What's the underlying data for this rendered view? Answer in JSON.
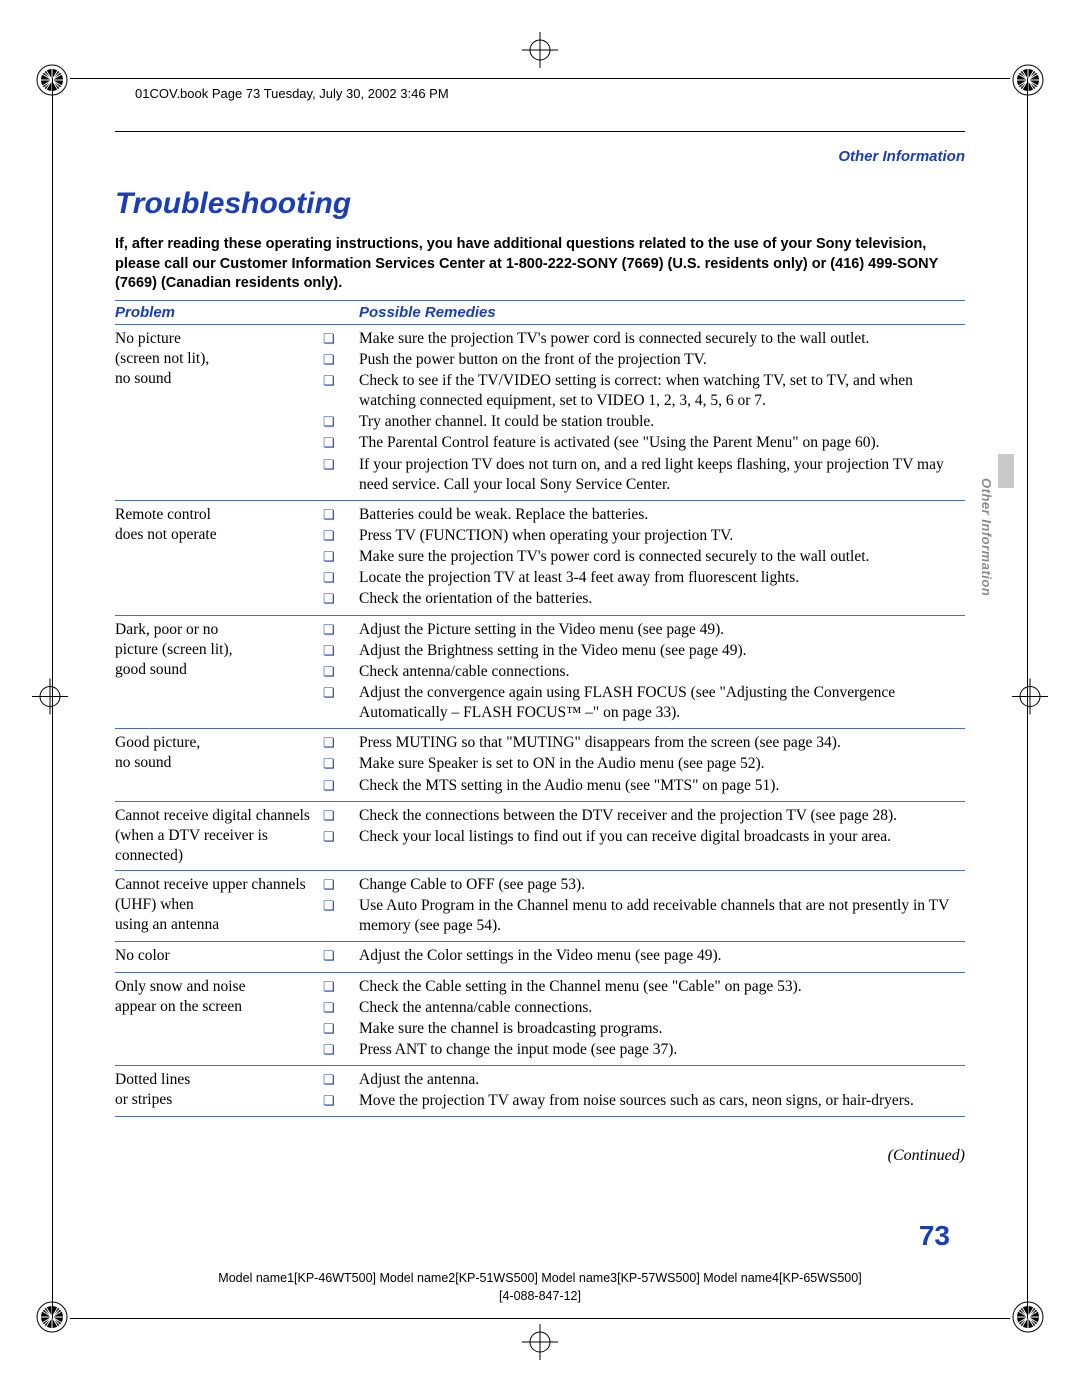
{
  "book_header": "01COV.book  Page 73  Tuesday, July 30, 2002  3:46 PM",
  "section_tag": "Other Information",
  "title": "Troubleshooting",
  "intro": "If, after reading these operating instructions, you have additional questions related to the use of your Sony television, please call our Customer Information Services Center at 1-800-222-SONY (7669) (U.S. residents only) or (416) 499-SONY (7669) (Canadian residents only).",
  "columns": {
    "problem": "Problem",
    "remedies": "Possible Remedies"
  },
  "rows": [
    {
      "problem": "No picture\n(screen not lit),\nno sound",
      "remedies": [
        "Make sure the projection TV's power cord is connected securely to the wall outlet.",
        "Push the power button on the front of the projection TV.",
        "Check to see if the TV/VIDEO setting is correct: when watching TV, set to TV, and when watching connected equipment, set to VIDEO 1, 2, 3, 4, 5, 6 or 7.",
        "Try another channel. It could be station trouble.",
        "The Parental Control feature is activated (see \"Using the Parent Menu\" on page 60).",
        "If your projection TV does not turn on, and a red light keeps flashing, your projection TV may need service. Call your local Sony Service Center."
      ]
    },
    {
      "problem": "Remote control\ndoes not operate",
      "remedies": [
        "Batteries could be weak. Replace the batteries.",
        "Press TV (FUNCTION) when operating your projection TV.",
        "Make sure the projection TV's power cord is connected securely to the wall outlet.",
        "Locate the projection TV at least 3-4 feet away from fluorescent lights.",
        "Check the orientation of the batteries."
      ]
    },
    {
      "problem": "Dark, poor or no\npicture (screen lit),\ngood sound",
      "remedies": [
        "Adjust the Picture setting in the Video menu (see page 49).",
        "Adjust the Brightness setting in the Video menu (see page 49).",
        "Check antenna/cable connections.",
        "Adjust the convergence again using FLASH FOCUS (see \"Adjusting the Convergence Automatically – FLASH FOCUS™ –\" on page 33)."
      ]
    },
    {
      "problem": "Good picture,\nno sound",
      "remedies": [
        "Press MUTING so that \"MUTING\" disappears from the screen (see page 34).",
        "Make sure Speaker is set to ON in the Audio menu (see page 52).",
        "Check the MTS setting in the Audio menu (see \"MTS\" on page 51)."
      ]
    },
    {
      "problem": "Cannot receive digital channels\n(when a DTV receiver is\nconnected)",
      "remedies": [
        "Check the connections between the DTV receiver and the projection TV (see page 28).",
        "Check your local listings to find out if you can receive digital broadcasts in your area."
      ]
    },
    {
      "problem": "Cannot receive upper channels\n(UHF) when\nusing an antenna",
      "remedies": [
        "Change Cable to OFF (see page 53).",
        "Use Auto Program in the Channel menu to add receivable channels that are not presently in TV memory (see page 54)."
      ]
    },
    {
      "problem": "No color",
      "remedies": [
        "Adjust the Color settings in the Video menu (see page 49)."
      ]
    },
    {
      "problem": "Only snow and noise\nappear on the screen",
      "remedies": [
        "Check the Cable setting in the Channel menu (see \"Cable\" on page 53).",
        "Check the antenna/cable connections.",
        "Make sure the channel is broadcasting programs.",
        "Press ANT to change the input mode (see page 37)."
      ]
    },
    {
      "problem": "Dotted lines\nor stripes",
      "remedies": [
        "Adjust the antenna.",
        "Move the projection TV away from noise sources such as cars, neon signs, or hair-dryers."
      ]
    }
  ],
  "continued": "(Continued)",
  "page_number": "73",
  "side_label": "Other Information",
  "footer_line1": "Model name1[KP-46WT500] Model name2[KP-51WS500] Model name3[KP-57WS500] Model name4[KP-65WS500]",
  "footer_line2": "[4-088-847-12]",
  "colors": {
    "accent": "#1a3db8",
    "rule": "#4a6acc",
    "side_gray": "#8a8a8a",
    "tab_gray": "#c9c9c9"
  }
}
